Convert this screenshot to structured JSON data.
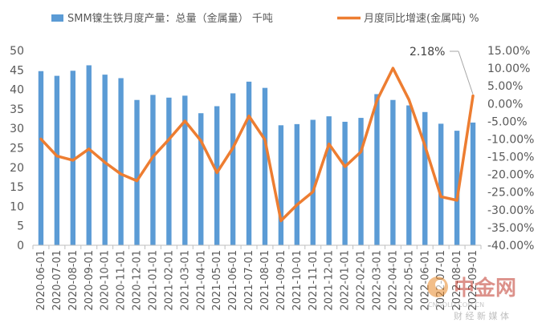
{
  "chart_data": {
    "type": "bar+line",
    "categories": [
      "2020-06-01",
      "2020-07-01",
      "2020-08-01",
      "2020-09-01",
      "2020-10-01",
      "2020-11-01",
      "2020-12-01",
      "2021-01-01",
      "2021-02-01",
      "2021-03-01",
      "2021-04-01",
      "2021-05-01",
      "2021-06-01",
      "2021-07-01",
      "2021-08-01",
      "2021-09-01",
      "2021-10-01",
      "2021-11-01",
      "2021-12-01",
      "2022-01-01",
      "2022-02-01",
      "2022-03-01",
      "2022-04-01",
      "2022-05-01",
      "2022-06-01",
      "2022-07-01",
      "2022-08-01",
      "2022-09-01"
    ],
    "series": [
      {
        "name": "SMM镍生铁月度产量：总量（金属量） 千吨",
        "type": "bar",
        "axis": "left",
        "color": "#5B9BD5",
        "values": [
          44.7,
          43.5,
          44.8,
          46.2,
          43.8,
          42.9,
          37.3,
          38.6,
          37.9,
          38.4,
          33.9,
          35.7,
          39,
          42,
          40.4,
          30.8,
          31.1,
          32.2,
          33.1,
          31.7,
          32.7,
          38.8,
          37.3,
          35.9,
          34.2,
          31.2,
          29.4,
          31.5
        ]
      },
      {
        "name": "月度同比增速(金属吨) %",
        "type": "line",
        "axis": "right",
        "color": "#ED7D31",
        "values": [
          -10.0,
          -14.8,
          -16.0,
          -12.8,
          -16.6,
          -19.9,
          -21.8,
          -15.0,
          -10.1,
          -4.9,
          -10.5,
          -19.5,
          -12.5,
          -3.5,
          -10.2,
          -33.1,
          -28.6,
          -24.9,
          -11.4,
          -17.8,
          -13.6,
          0.9,
          10.0,
          1.1,
          -11.9,
          -26.3,
          -27.3,
          2.18
        ]
      }
    ],
    "y_left": {
      "min": 0,
      "max": 50,
      "step": 5,
      "ticks": [
        "0",
        "5",
        "10",
        "15",
        "20",
        "25",
        "30",
        "35",
        "40",
        "45",
        "50"
      ]
    },
    "y_right": {
      "min": -40,
      "max": 15,
      "step": 5,
      "ticks": [
        "-40.00%",
        "-35.00%",
        "-30.00%",
        "-25.00%",
        "-20.00%",
        "-15.00%",
        "-10.00%",
        "-5.00%",
        "0.00%",
        "5.00%",
        "10.00%",
        "15.00%"
      ]
    },
    "annotation": {
      "text": "2.18%",
      "category_index": 27
    },
    "grid": false,
    "legend_position": "top"
  },
  "watermark": {
    "brand": "中金网",
    "url": "CNGOLD.COM.CN",
    "tagline": "财 经 新 媒 体"
  }
}
